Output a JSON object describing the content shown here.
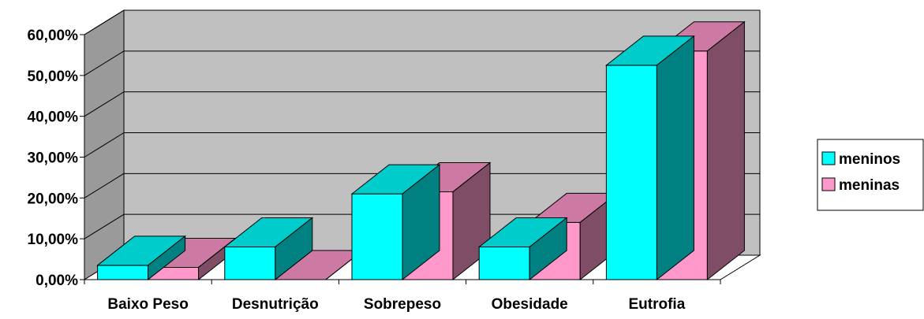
{
  "chart_data": {
    "type": "bar",
    "style": "3d-clustered-column",
    "title": "",
    "xlabel": "",
    "ylabel": "",
    "categories": [
      "Baixo Peso",
      "Desnutrição",
      "Sobrepeso",
      "Obesidade",
      "Eutrofia"
    ],
    "series": [
      {
        "name": "meninos",
        "values": [
          3.5,
          8.0,
          21.0,
          8.0,
          52.5
        ],
        "color": "#00FFFF"
      },
      {
        "name": "meninas",
        "values": [
          3.0,
          0.0,
          21.5,
          14.0,
          56.0
        ],
        "color": "#FF99CC"
      }
    ],
    "ylim": [
      0,
      60
    ],
    "y_ticks": [
      "0,00%",
      "10,00%",
      "20,00%",
      "30,00%",
      "40,00%",
      "50,00%",
      "60,00%"
    ],
    "grid": true,
    "wall_color": "#C0C0C0",
    "legend_position": "right"
  }
}
